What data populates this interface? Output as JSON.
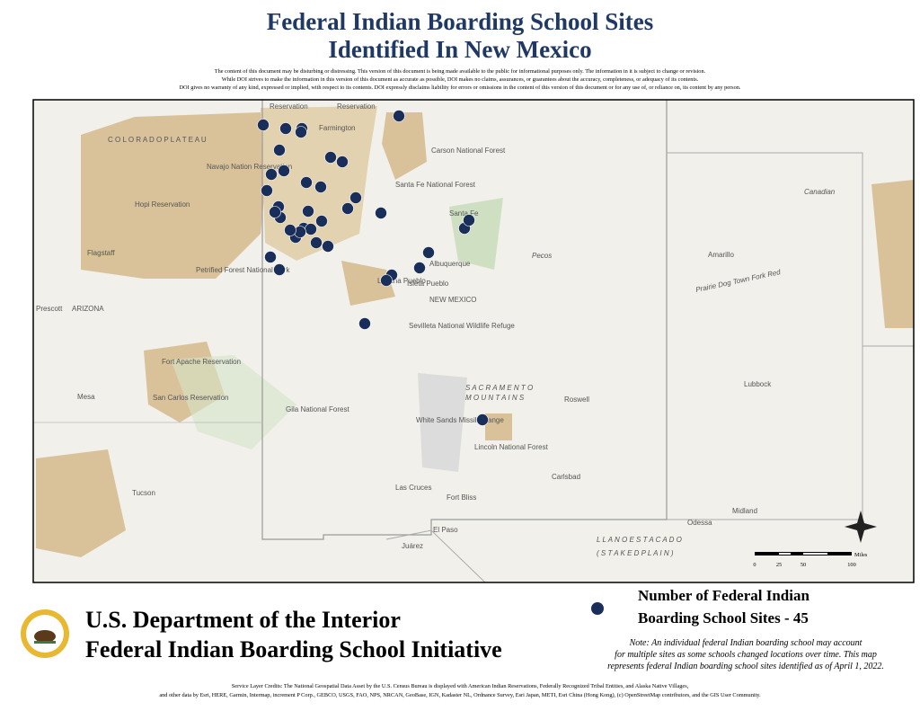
{
  "header": {
    "title_line1": "Federal Indian Boarding School Sites",
    "title_line2": "Identified In New Mexico",
    "disclaimer": [
      "The content of this document may be disturbing or distressing. This version of this document is being made available to the public for informational purposes only. The information in it is subject to change or revision.",
      "While DOI strives to make the information in this version of this document as accurate as possible, DOI makes no claims, assurances, or guarantees about the accuracy, completeness, or adequacy of its contents.",
      "DOI gives no warranty of any kind, expressed or implied, with respect to its contents. DOI expressly disclaims liability for errors or omissions in the content of this version of this document or for any use of, or reliance on, its content by any person."
    ]
  },
  "map": {
    "labels": [
      "Farmington",
      "C O L O R A D O   P L A T E A U",
      "Navajo Nation Reservation",
      "Hopi Reservation",
      "Flagstaff",
      "Santa Fe",
      "Albuquerque",
      "NEW MEXICO",
      "Amarillo",
      "Lubbock",
      "Roswell",
      "Las Cruces",
      "El Paso",
      "Juárez",
      "Carlsbad",
      "Midland",
      "Odessa",
      "Tucson",
      "Mesa",
      "Prescott",
      "ARIZONA",
      "S A C R A M E N T O",
      "M O U N T A I N S",
      "L L A N O   E S T A C A D O",
      "( S T A K E D   P L A I N )",
      "White Sands Missile Range",
      "Lincoln National Forest",
      "Fort Bliss",
      "Gila National Forest",
      "Carson National Forest",
      "Santa Fe National Forest",
      "Laguna Pueblo",
      "Isleta Pueblo",
      "Canadian",
      "Prairie Dog Town Fork Red",
      "Pecos",
      "Fort Apache Reservation",
      "San Carlos Reservation",
      "Petrified Forest National Park",
      "Sevilleta National Wildlife Refuge",
      "Reservation",
      "Reservation"
    ],
    "scale": {
      "unit": "Miles",
      "ticks": [
        "0",
        "25",
        "50",
        "100"
      ]
    }
  },
  "footer": {
    "department": "U.S. Department of the Interior",
    "initiative": "Federal Indian Boarding School Initiative",
    "legend_line1": "Number of Federal Indian",
    "legend_line2": "Boarding School Sites - 45",
    "note": [
      "Note: An individual federal Indian boarding school may account",
      "for multiple sites as some schools changed locations over time. This map",
      "represents federal Indian boarding school sites identified as of April 1, 2022."
    ],
    "credits": [
      "Service Layer Credits: The National Geospatial Data Asset by the U.S. Census Bureau is displayed with American Indian Reservations, Federally Recognized Tribal Entities, and Alaska Native Villages,",
      "and other data by Esri, HERE, Garmin, Intermap, increment P Corp., GEBCO, USGS, FAO, NPS, NRCAN, GeoBase, IGN, Kadaster NL, Ordnance Survey, Esri Japan, METI, Esri China (Hong Kong), (c) OpenStreetMap contributors, and the GIS User Community."
    ]
  }
}
